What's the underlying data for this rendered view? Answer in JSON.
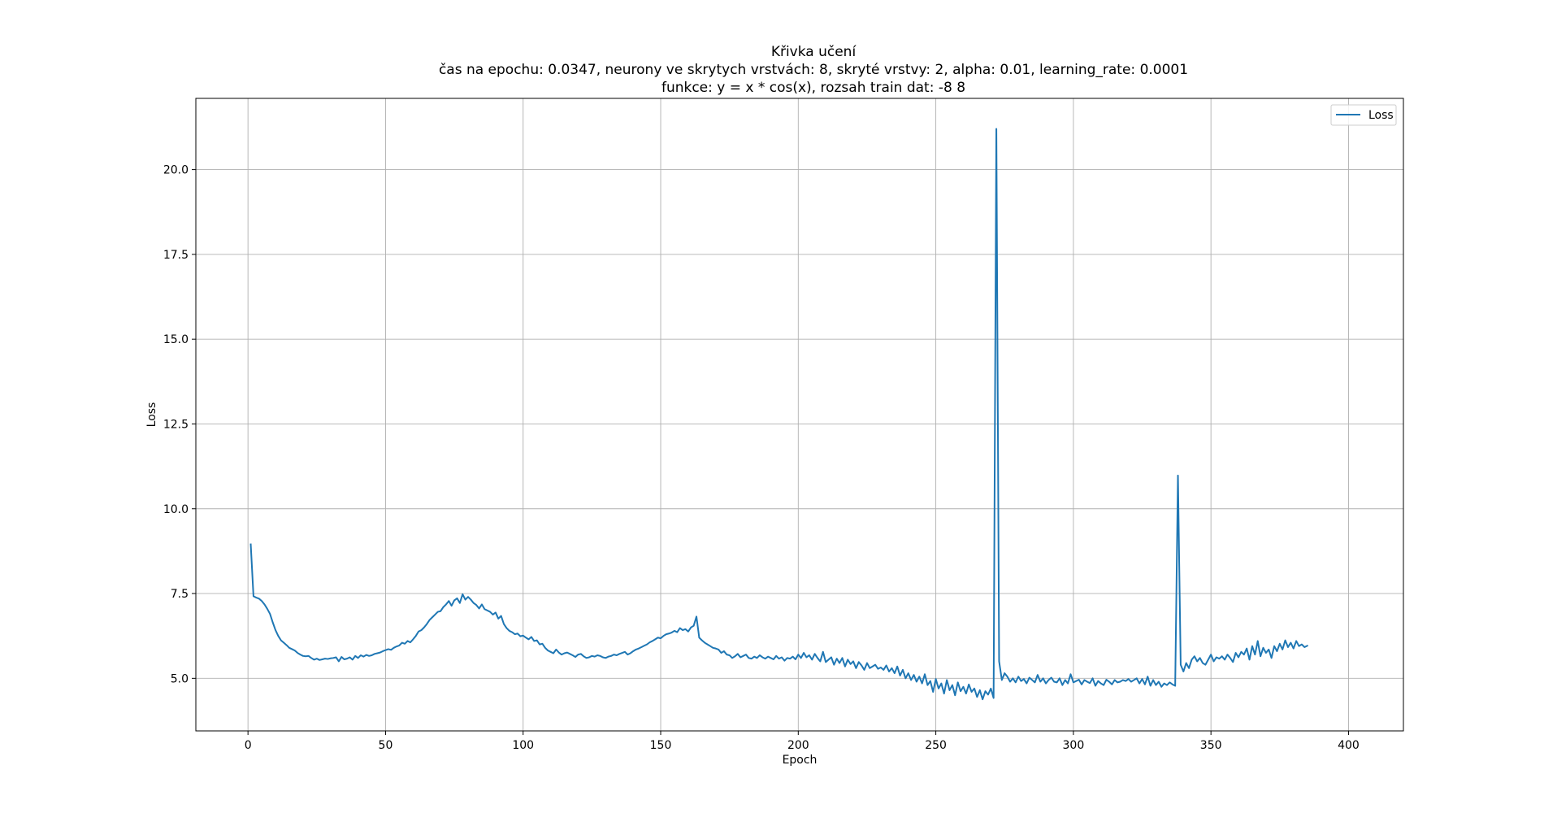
{
  "chart_data": {
    "type": "line",
    "title": "Křivka učení",
    "subtitle_lines": [
      "čas na epochu: 0.0347, neurony ve skrytych vrstvách: 8, skryté vrstvy: 2, alpha: 0.01, learning_rate: 0.0001",
      "funkce: y = x * cos(x), rozsah train dat: -8 8"
    ],
    "xlabel": "Epoch",
    "ylabel": "Loss",
    "xlim": [
      -18.95,
      419.95
    ],
    "ylim": [
      3.45,
      22.1
    ],
    "xticks": [
      0,
      50,
      100,
      150,
      200,
      250,
      300,
      350,
      400
    ],
    "yticks": [
      5.0,
      7.5,
      10.0,
      12.5,
      15.0,
      17.5,
      20.0
    ],
    "ytick_labels": [
      "5.0",
      "7.5",
      "10.0",
      "12.5",
      "15.0",
      "17.5",
      "20.0"
    ],
    "grid": true,
    "legend": {
      "placement": "top-right",
      "entries": [
        "Loss"
      ]
    },
    "series": [
      {
        "name": "Loss",
        "color": "#1f77b4",
        "x_start": 1,
        "x_step": 1,
        "values": [
          8.95,
          7.42,
          7.38,
          7.35,
          7.28,
          7.18,
          7.05,
          6.9,
          6.65,
          6.42,
          6.25,
          6.12,
          6.05,
          5.98,
          5.9,
          5.86,
          5.82,
          5.75,
          5.7,
          5.66,
          5.65,
          5.66,
          5.6,
          5.55,
          5.58,
          5.54,
          5.56,
          5.58,
          5.57,
          5.59,
          5.6,
          5.62,
          5.5,
          5.63,
          5.56,
          5.58,
          5.62,
          5.55,
          5.66,
          5.6,
          5.68,
          5.64,
          5.69,
          5.66,
          5.68,
          5.72,
          5.74,
          5.76,
          5.8,
          5.83,
          5.86,
          5.84,
          5.9,
          5.94,
          5.97,
          6.05,
          6.02,
          6.1,
          6.06,
          6.15,
          6.25,
          6.38,
          6.42,
          6.5,
          6.6,
          6.72,
          6.8,
          6.88,
          6.96,
          6.98,
          7.1,
          7.18,
          7.28,
          7.14,
          7.3,
          7.36,
          7.22,
          7.48,
          7.32,
          7.4,
          7.32,
          7.22,
          7.16,
          7.06,
          7.18,
          7.04,
          7.0,
          6.96,
          6.88,
          6.94,
          6.76,
          6.84,
          6.6,
          6.48,
          6.4,
          6.36,
          6.3,
          6.32,
          6.24,
          6.26,
          6.2,
          6.15,
          6.22,
          6.1,
          6.12,
          6.0,
          6.02,
          5.9,
          5.82,
          5.78,
          5.74,
          5.85,
          5.76,
          5.7,
          5.74,
          5.76,
          5.72,
          5.68,
          5.63,
          5.7,
          5.72,
          5.65,
          5.6,
          5.62,
          5.66,
          5.64,
          5.68,
          5.66,
          5.62,
          5.6,
          5.64,
          5.66,
          5.7,
          5.68,
          5.72,
          5.75,
          5.78,
          5.7,
          5.74,
          5.8,
          5.85,
          5.88,
          5.92,
          5.96,
          6.0,
          6.06,
          6.1,
          6.15,
          6.2,
          6.18,
          6.25,
          6.3,
          6.32,
          6.35,
          6.4,
          6.36,
          6.48,
          6.42,
          6.45,
          6.38,
          6.5,
          6.55,
          6.82,
          6.2,
          6.12,
          6.05,
          6.0,
          5.95,
          5.9,
          5.88,
          5.85,
          5.75,
          5.8,
          5.7,
          5.68,
          5.6,
          5.65,
          5.72,
          5.62,
          5.66,
          5.7,
          5.6,
          5.58,
          5.64,
          5.6,
          5.68,
          5.62,
          5.58,
          5.64,
          5.6,
          5.56,
          5.66,
          5.58,
          5.62,
          5.52,
          5.6,
          5.58,
          5.64,
          5.56,
          5.7,
          5.6,
          5.75,
          5.62,
          5.68,
          5.55,
          5.72,
          5.6,
          5.5,
          5.78,
          5.48,
          5.55,
          5.62,
          5.4,
          5.58,
          5.45,
          5.6,
          5.35,
          5.55,
          5.42,
          5.5,
          5.3,
          5.48,
          5.38,
          5.25,
          5.45,
          5.3,
          5.35,
          5.4,
          5.28,
          5.32,
          5.25,
          5.38,
          5.2,
          5.3,
          5.15,
          5.35,
          5.08,
          5.25,
          5.0,
          5.15,
          4.95,
          5.1,
          4.9,
          5.05,
          4.85,
          5.12,
          4.8,
          4.92,
          4.6,
          4.98,
          4.7,
          4.85,
          4.55,
          4.95,
          4.65,
          4.8,
          4.5,
          4.88,
          4.62,
          4.75,
          4.55,
          4.82,
          4.6,
          4.7,
          4.45,
          4.65,
          4.38,
          4.62,
          4.52,
          4.7,
          4.42,
          21.2,
          5.5,
          4.95,
          5.15,
          5.05,
          4.9,
          5.0,
          4.88,
          5.05,
          4.92,
          4.98,
          4.85,
          5.02,
          4.95,
          4.88,
          5.1,
          4.9,
          5.0,
          4.85,
          4.95,
          5.02,
          4.9,
          4.88,
          5.0,
          4.8,
          4.95,
          4.85,
          5.12,
          4.88,
          4.92,
          4.96,
          4.82,
          4.95,
          4.9,
          4.86,
          5.0,
          4.78,
          4.92,
          4.85,
          4.8,
          4.96,
          4.9,
          4.82,
          4.95,
          4.88,
          4.9,
          4.95,
          4.92,
          4.98,
          4.9,
          4.95,
          5.0,
          4.85,
          4.98,
          4.82,
          5.05,
          4.78,
          4.95,
          4.8,
          4.9,
          4.75,
          4.85,
          4.8,
          4.88,
          4.82,
          4.78,
          10.98,
          5.4,
          5.2,
          5.45,
          5.3,
          5.55,
          5.65,
          5.5,
          5.6,
          5.45,
          5.4,
          5.55,
          5.7,
          5.5,
          5.62,
          5.58,
          5.65,
          5.55,
          5.7,
          5.6,
          5.48,
          5.75,
          5.62,
          5.78,
          5.7,
          5.88,
          5.55,
          5.95,
          5.7,
          6.1,
          5.65,
          5.9,
          5.75,
          5.85,
          5.6,
          5.95,
          5.8,
          6.02,
          5.85,
          6.12,
          5.92,
          6.05,
          5.88,
          6.1,
          5.95,
          6.0,
          5.92,
          5.96
        ]
      }
    ]
  }
}
